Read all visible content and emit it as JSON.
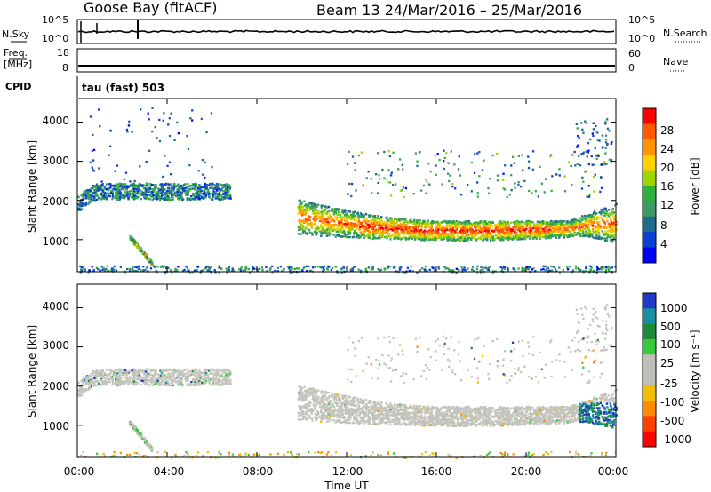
{
  "header": {
    "title": "Goose Bay (fitACF)",
    "beam_date": "Beam 13  24/Mar/2016 – 25/Mar/2016"
  },
  "strip": {
    "nsky_label": "N.Sky",
    "nsearch_label": "N.Search",
    "noise_ticks_left": [
      "10^5",
      "10^0"
    ],
    "noise_ticks_right": [
      "10^5",
      "10^0"
    ],
    "freq_label_line1": "Freq.",
    "freq_label_line2": "[MHz]",
    "freq_ticks": [
      "18",
      "8"
    ],
    "nave_label": "Nave",
    "nave_ticks": [
      "60",
      "0"
    ],
    "cpid_label": "CPID",
    "cpid_value": "tau (fast) 503"
  },
  "panels": {
    "y_label": "Slant Range [km]",
    "y_ticks": [
      "4000",
      "3000",
      "2000",
      "1000"
    ],
    "x_ticks": [
      "00:00",
      "04:00",
      "08:00",
      "12:00",
      "16:00",
      "20:00",
      "00:00"
    ],
    "x_label": "Time UT"
  },
  "colorbars": {
    "power": {
      "label": "Power [dB]",
      "ticks": [
        "28",
        "24",
        "20",
        "16",
        "12",
        "8",
        "4"
      ],
      "colors": [
        "#ff0000",
        "#ff5a00",
        "#ff9400",
        "#ffd100",
        "#9fd400",
        "#2faf3b",
        "#3d9a66",
        "#1f6b8f",
        "#0a3fd4",
        "#0000ff"
      ]
    },
    "velocity": {
      "label": "Velocity [m s⁻¹]",
      "ticks": [
        "1000",
        "500",
        "100",
        "25",
        "-25",
        "-100",
        "-500",
        "-1000"
      ],
      "colors": [
        "#1e3cc8",
        "#1a8fa0",
        "#1d8a3a",
        "#39c83a",
        "#c0c0b8",
        "#c0c0b8",
        "#f0c000",
        "#ff8c00",
        "#ff4000",
        "#ff0000"
      ]
    }
  },
  "chart_data": [
    {
      "type": "heatmap",
      "title": "Goose Bay (fitACF)",
      "xlabel": "Time UT",
      "ylabel": "Slant Range [km]",
      "x_range_hours": [
        0,
        24
      ],
      "y_range_km": [
        180,
        4600
      ],
      "colorbar": "Power [dB]",
      "scatter_regions": [
        {
          "t": [
            0.0,
            6.8
          ],
          "range_km": [
            1750,
            2550
          ],
          "power_db": [
            4,
            16
          ]
        },
        {
          "t": [
            1.0,
            3.0
          ],
          "range_km": [
            2700,
            3200
          ],
          "power_db": [
            4,
            8
          ]
        },
        {
          "t": [
            2.3,
            3.3
          ],
          "range_km": [
            350,
            1100
          ],
          "power_db": [
            8,
            24
          ]
        },
        {
          "t": [
            9.8,
            24.0
          ],
          "range_km": [
            950,
            2250
          ],
          "power_db": [
            8,
            28
          ]
        },
        {
          "t": [
            12.5,
            21.0
          ],
          "range_km": [
            1000,
            1600
          ],
          "power_db": [
            20,
            28
          ]
        },
        {
          "t": [
            0.0,
            24.0
          ],
          "range_km": [
            180,
            320
          ],
          "power_db": [
            4,
            16
          ]
        }
      ]
    },
    {
      "type": "heatmap",
      "xlabel": "Time UT",
      "ylabel": "Slant Range [km]",
      "x_range_hours": [
        0,
        24
      ],
      "y_range_km": [
        180,
        4600
      ],
      "colorbar": "Velocity [m s⁻¹]",
      "scatter_regions": [
        {
          "t": [
            0.0,
            6.8
          ],
          "range_km": [
            1800,
            2450
          ],
          "velocity_ms": [
            -25,
            25
          ]
        },
        {
          "t": [
            9.8,
            24.0
          ],
          "range_km": [
            1000,
            2000
          ],
          "velocity_ms": [
            -25,
            25
          ]
        },
        {
          "t": [
            22.5,
            24.0
          ],
          "range_km": [
            900,
            1600
          ],
          "velocity_ms": [
            100,
            1000
          ]
        },
        {
          "t": [
            2.5,
            3.2
          ],
          "range_km": [
            300,
            800
          ],
          "velocity_ms": [
            -25,
            100
          ]
        }
      ]
    }
  ]
}
